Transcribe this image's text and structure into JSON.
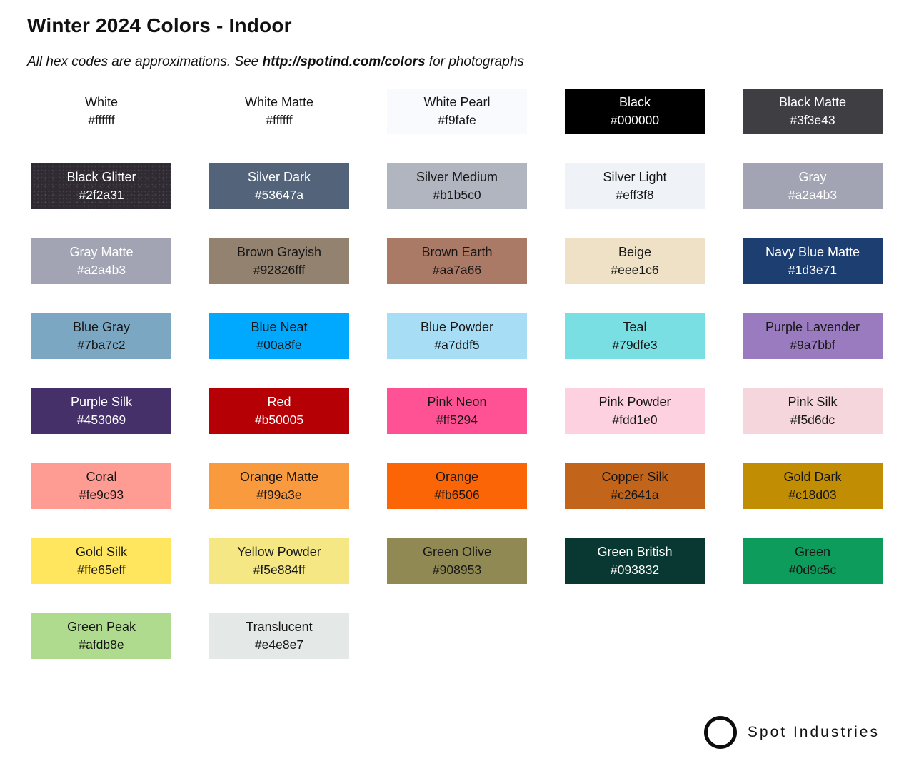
{
  "page": {
    "title": "Winter 2024 Colors - Indoor",
    "subtitle_prefix": "All hex codes are approximations. See ",
    "subtitle_link": "http://spotind.com/colors",
    "subtitle_suffix": " for photographs"
  },
  "colors": {
    "text_dark": "#161616",
    "text_light": "#ffffff",
    "background": "#ffffff"
  },
  "swatches": [
    {
      "name": "White",
      "hex": "#ffffff",
      "bg": "#ffffff",
      "text": "dark"
    },
    {
      "name": "White Matte",
      "hex": "#ffffff",
      "bg": "#ffffff",
      "text": "dark"
    },
    {
      "name": "White Pearl",
      "hex": "#f9fafe",
      "bg": "#f9fafe",
      "text": "dark"
    },
    {
      "name": "Black",
      "hex": "#000000",
      "bg": "#000000",
      "text": "light"
    },
    {
      "name": "Black Matte",
      "hex": "#3f3e43",
      "bg": "#3f3e43",
      "text": "light"
    },
    {
      "name": "Black Glitter",
      "hex": "#2f2a31",
      "bg": "#2f2a31",
      "text": "light",
      "texture": "glitter"
    },
    {
      "name": "Silver Dark",
      "hex": "#53647a",
      "bg": "#53647a",
      "text": "light"
    },
    {
      "name": "Silver Medium",
      "hex": "#b1b5c0",
      "bg": "#b1b5c0",
      "text": "dark"
    },
    {
      "name": "Silver Light",
      "hex": "#eff3f8",
      "bg": "#eff3f8",
      "text": "dark"
    },
    {
      "name": "Gray",
      "hex": "#a2a4b3",
      "bg": "#a2a4b3",
      "text": "light"
    },
    {
      "name": "Gray Matte",
      "hex": "#a2a4b3",
      "bg": "#a2a4b3",
      "text": "light"
    },
    {
      "name": "Brown Grayish",
      "hex": "#92826fff",
      "bg": "#92826f",
      "text": "dark"
    },
    {
      "name": "Brown Earth",
      "hex": "#aa7a66",
      "bg": "#aa7a66",
      "text": "dark"
    },
    {
      "name": "Beige",
      "hex": "#eee1c6",
      "bg": "#eee1c6",
      "text": "dark"
    },
    {
      "name": "Navy Blue Matte",
      "hex": "#1d3e71",
      "bg": "#1d3e71",
      "text": "light"
    },
    {
      "name": "Blue Gray",
      "hex": "#7ba7c2",
      "bg": "#7ba7c2",
      "text": "dark"
    },
    {
      "name": "Blue Neat",
      "hex": "#00a8fe",
      "bg": "#00a8fe",
      "text": "dark"
    },
    {
      "name": "Blue Powder",
      "hex": "#a7ddf5",
      "bg": "#a7ddf5",
      "text": "dark"
    },
    {
      "name": "Teal",
      "hex": "#79dfe3",
      "bg": "#79dfe3",
      "text": "dark"
    },
    {
      "name": "Purple Lavender",
      "hex": "#9a7bbf",
      "bg": "#9a7bbf",
      "text": "dark"
    },
    {
      "name": "Purple Silk",
      "hex": "#453069",
      "bg": "#453069",
      "text": "light"
    },
    {
      "name": "Red",
      "hex": "#b50005",
      "bg": "#b50005",
      "text": "light"
    },
    {
      "name": "Pink Neon",
      "hex": "#ff5294",
      "bg": "#ff5294",
      "text": "dark"
    },
    {
      "name": "Pink Powder",
      "hex": "#fdd1e0",
      "bg": "#fdd1e0",
      "text": "dark"
    },
    {
      "name": "Pink Silk",
      "hex": "#f5d6dc",
      "bg": "#f5d6dc",
      "text": "dark"
    },
    {
      "name": "Coral",
      "hex": "#fe9c93",
      "bg": "#fe9c93",
      "text": "dark"
    },
    {
      "name": "Orange Matte",
      "hex": "#f99a3e",
      "bg": "#f99a3e",
      "text": "dark"
    },
    {
      "name": "Orange",
      "hex": "#fb6506",
      "bg": "#fb6506",
      "text": "dark"
    },
    {
      "name": "Copper Silk",
      "hex": "#c2641a",
      "bg": "#c2641a",
      "text": "dark"
    },
    {
      "name": "Gold Dark",
      "hex": "#c18d03",
      "bg": "#c18d03",
      "text": "dark"
    },
    {
      "name": "Gold Silk",
      "hex": "#ffe65eff",
      "bg": "#ffe65e",
      "text": "dark"
    },
    {
      "name": "Yellow Powder",
      "hex": "#f5e884ff",
      "bg": "#f5e884",
      "text": "dark"
    },
    {
      "name": "Green Olive",
      "hex": "#908953",
      "bg": "#908953",
      "text": "dark"
    },
    {
      "name": "Green British",
      "hex": "#093832",
      "bg": "#093832",
      "text": "light"
    },
    {
      "name": "Green",
      "hex": "#0d9c5c",
      "bg": "#0d9c5c",
      "text": "dark"
    },
    {
      "name": "Green Peak",
      "hex": "#afdb8e",
      "bg": "#afdb8e",
      "text": "dark"
    },
    {
      "name": "Translucent",
      "hex": "#e4e8e7",
      "bg": "#e4e8e7",
      "text": "dark"
    }
  ],
  "footer": {
    "brand": "Spot Industries",
    "logo_icon": "circle-outline-icon"
  }
}
